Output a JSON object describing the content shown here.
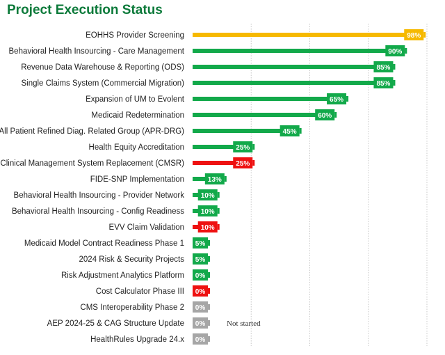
{
  "title": "Project Execution Status",
  "colors": {
    "complete_high": "#f6b900",
    "on_track": "#12a94a",
    "at_risk": "#ee1111",
    "not_started": "#a6a6a6"
  },
  "chart_data": {
    "type": "bar",
    "orientation": "horizontal",
    "title": "Project Execution Status",
    "xlim": [
      0,
      100
    ],
    "grid": "vertical dotted",
    "categories": [
      "EOHHS Provider Screening",
      "Behavioral Health Insourcing - Care Management",
      "Revenue Data Warehouse & Reporting (ODS)",
      "Single Claims System (Commercial Migration)",
      "Expansion of UM to Evolent",
      "Medicaid Redetermination",
      "All Patient Refined Diag. Related Group (APR-DRG)",
      "Health Equity Accreditation",
      "Clinical Management System Replacement (CMSR)",
      "FIDE-SNP Implementation",
      "Behavioral Health Insourcing - Provider Network",
      "Behavioral Health Insourcing - Config Readiness",
      "EVV Claim Validation",
      "Medicaid Model Contract Readiness Phase 1",
      "2024 Risk & Security Projects",
      "Risk Adjustment Analytics Platform",
      "Cost Calculator Phase III",
      "CMS Interoperability Phase 2",
      "AEP 2024-25 & CAG Structure Update",
      "HealthRules Upgrade 24.x"
    ],
    "values": [
      98,
      90,
      85,
      85,
      65,
      60,
      45,
      25,
      25,
      13,
      10,
      10,
      10,
      5,
      5,
      0,
      0,
      0,
      0,
      0
    ],
    "labels": [
      "98%",
      "90%",
      "85%",
      "85%",
      "65%",
      "60%",
      "45%",
      "25%",
      "25%",
      "13%",
      "10%",
      "10%",
      "10%",
      "5%",
      "5%",
      "0%",
      "0%",
      "0%",
      "0%",
      "0%"
    ],
    "status": [
      "complete_high",
      "on_track",
      "on_track",
      "on_track",
      "on_track",
      "on_track",
      "on_track",
      "on_track",
      "at_risk",
      "on_track",
      "on_track",
      "on_track",
      "at_risk",
      "on_track",
      "on_track",
      "on_track",
      "at_risk",
      "not_started",
      "not_started",
      "not_started"
    ],
    "annotations": [
      {
        "category": "AEP 2024-25 & CAG Structure Update",
        "text": "Not started"
      }
    ]
  }
}
